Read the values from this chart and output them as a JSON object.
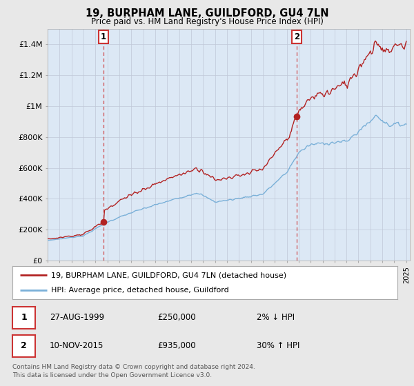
{
  "title": "19, BURPHAM LANE, GUILDFORD, GU4 7LN",
  "subtitle": "Price paid vs. HM Land Registry's House Price Index (HPI)",
  "background_color": "#e8e8e8",
  "plot_bg_color": "#dce8f5",
  "sale1_year": 1999.65,
  "sale1_price": 250000,
  "sale2_year": 2015.86,
  "sale2_price": 935000,
  "hpi_color": "#7ab0d8",
  "price_color": "#b22222",
  "dashed_color": "#cc3333",
  "ylim_max": 1500000,
  "yticks": [
    0,
    200000,
    400000,
    600000,
    800000,
    1000000,
    1200000,
    1400000
  ],
  "ytick_labels": [
    "£0",
    "£200K",
    "£400K",
    "£600K",
    "£800K",
    "£1M",
    "£1.2M",
    "£1.4M"
  ],
  "footnote": "Contains HM Land Registry data © Crown copyright and database right 2024.\nThis data is licensed under the Open Government Licence v3.0.",
  "legend_entry1": "19, BURPHAM LANE, GUILDFORD, GU4 7LN (detached house)",
  "legend_entry2": "HPI: Average price, detached house, Guildford",
  "table_row1_date": "27-AUG-1999",
  "table_row1_price": "£250,000",
  "table_row1_hpi": "2% ↓ HPI",
  "table_row2_date": "10-NOV-2015",
  "table_row2_price": "£935,000",
  "table_row2_hpi": "30% ↑ HPI",
  "xstart": 1995,
  "xend": 2025
}
